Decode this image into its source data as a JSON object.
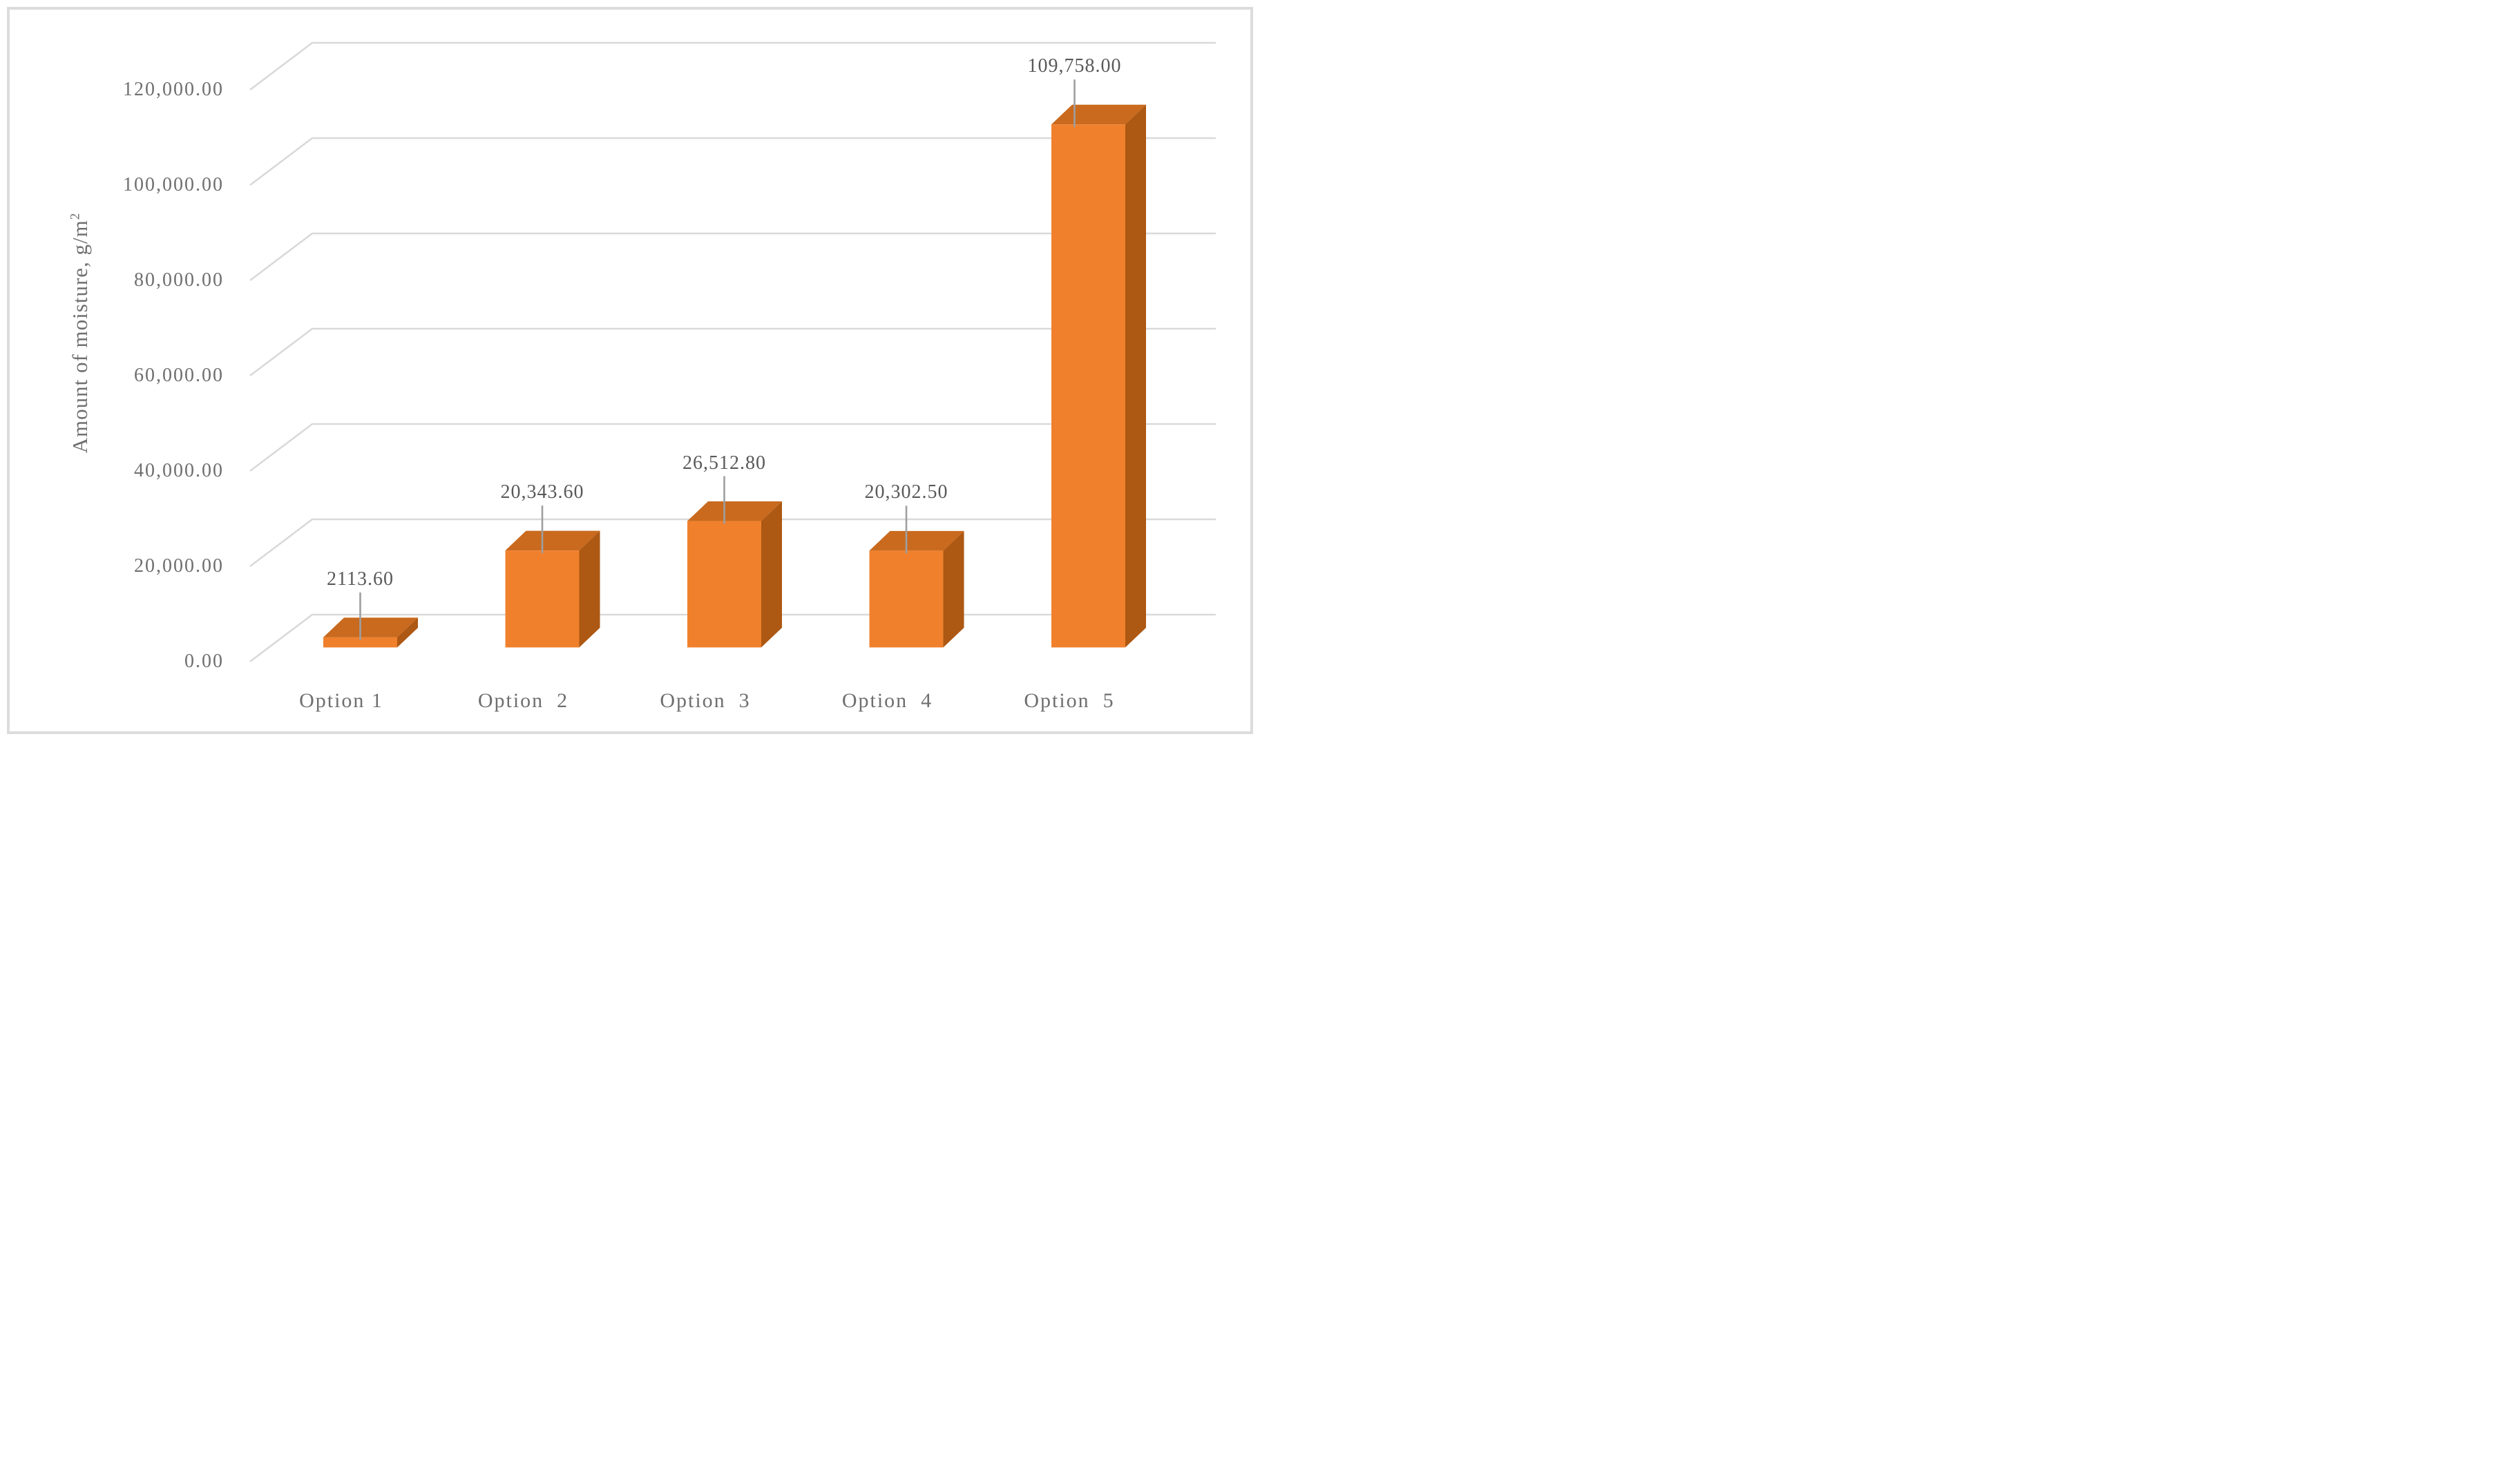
{
  "figure": {
    "background": "#ffffff",
    "border_color": "#dcdcdc"
  },
  "y_axis": {
    "title_base": "Amount of moisture, g/m",
    "title_superscript": "2",
    "title_full": "Amount of moisture, g/m²",
    "tick_labels": [
      "0.00",
      "20,000.00",
      "40,000.00",
      "60,000.00",
      "80,000.00",
      "100,000.00",
      "120,000.00"
    ],
    "tick_values": [
      0,
      20000,
      40000,
      60000,
      80000,
      100000,
      120000
    ]
  },
  "chart_data": {
    "type": "bar",
    "style": "3d-column",
    "title": "",
    "xlabel": "",
    "ylabel": "Amount of moisture, g/m²",
    "categories": [
      "Option 1",
      "Option  2",
      "Option  3",
      "Option  4",
      "Option  5"
    ],
    "values": [
      2113.6,
      20343.6,
      26512.8,
      20302.5,
      109758.0
    ],
    "data_labels": [
      "2113.60",
      "20,343.60",
      "26,512.80",
      "20,302.50",
      "109,758.00"
    ],
    "ylim": [
      0,
      120000
    ],
    "y_tick_step": 20000,
    "grid": true,
    "legend": false,
    "colors": {
      "bar_front": "#F0802C",
      "bar_top": "#C96A1E",
      "bar_side": "#AD5813",
      "gridline": "#D9D9D9",
      "leader_line": "#9E9FA1",
      "tick_text": "#6f6f6f",
      "data_label_text": "#595959"
    }
  }
}
